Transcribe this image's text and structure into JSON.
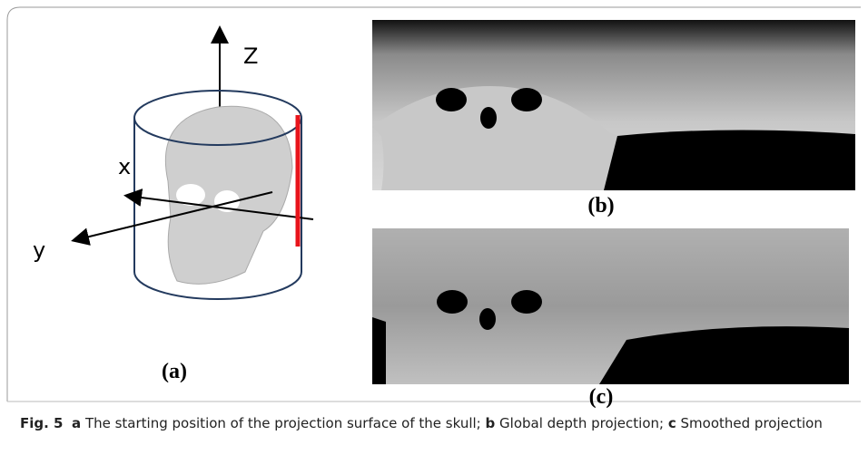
{
  "figure": {
    "axes": {
      "z": "Z",
      "x": "x",
      "y": "y"
    },
    "panels": [
      "(a)",
      "(b)",
      "(c)"
    ],
    "caption": {
      "label": "Fig. 5",
      "parts": [
        {
          "key": "a",
          "text": "The starting position of the projection surface of the skull;"
        },
        {
          "key": "b",
          "text": "Global depth projection;"
        },
        {
          "key": "c",
          "text": "Smoothed projection"
        }
      ]
    }
  }
}
